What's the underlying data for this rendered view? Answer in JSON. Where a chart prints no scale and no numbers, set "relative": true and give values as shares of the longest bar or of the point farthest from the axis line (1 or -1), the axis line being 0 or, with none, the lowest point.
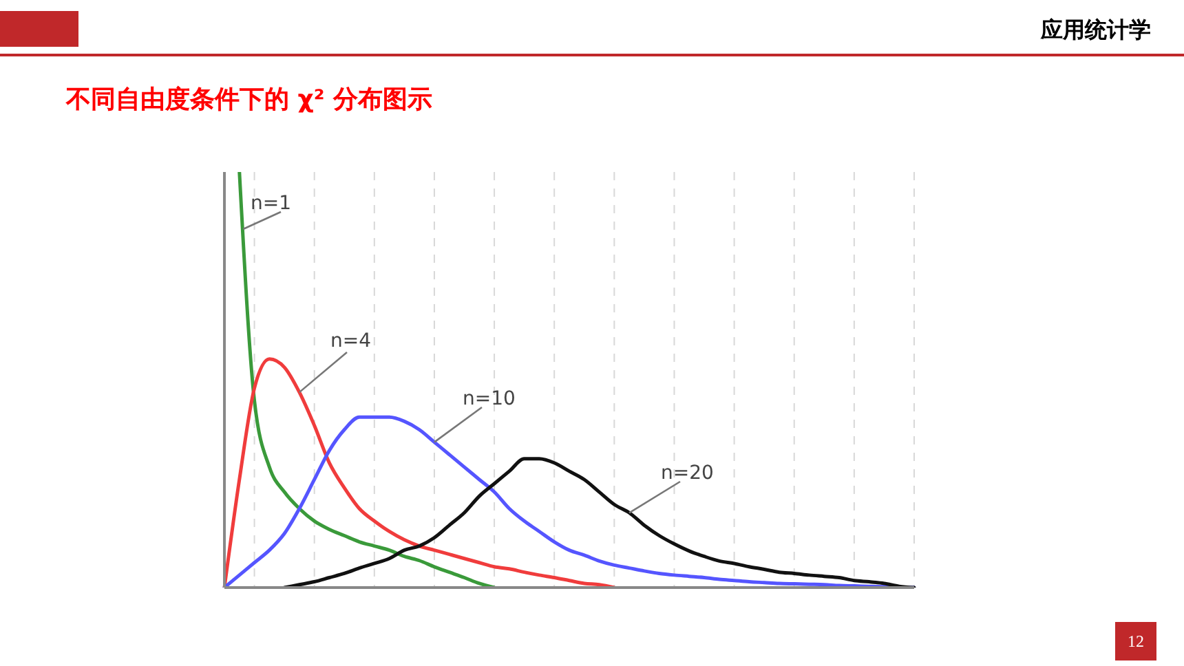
{
  "chart_data": {
    "type": "line",
    "title": "不同自由度条件下的 χ² 分布图示",
    "annotations": [
      "应用统计学",
      "12"
    ],
    "relative": true,
    "grid": "x",
    "categories": [
      null,
      null,
      null,
      null,
      null,
      null,
      null,
      null,
      null,
      null,
      null,
      null,
      null,
      null,
      null,
      null,
      null,
      null,
      null,
      null,
      null,
      null,
      null,
      null,
      null,
      null,
      null,
      null,
      null,
      null,
      null,
      null,
      null,
      null,
      null,
      null,
      null,
      null,
      null,
      null,
      null,
      null,
      null,
      null,
      null,
      null,
      null
    ],
    "series": [
      {
        "name": "n=1",
        "color": "#3a9a3a",
        "values": [
          null,
          1,
          0.45,
          0.29,
          0.23,
          0.19,
          0.16,
          0.14,
          0.125,
          0.11,
          0.1,
          0.09,
          0.075,
          0.065,
          0.05,
          0.037,
          0.024,
          0.01,
          0,
          null,
          null,
          null,
          null,
          null,
          null,
          null,
          null,
          null,
          null,
          null,
          null,
          null,
          null,
          null,
          null,
          null,
          null,
          null,
          null,
          null,
          null,
          null,
          null,
          null,
          null,
          null,
          null
        ]
      },
      {
        "name": "n=4",
        "color": "#f03c3c",
        "values": [
          0,
          0.26,
          0.48,
          0.55,
          0.53,
          0.47,
          0.39,
          0.3,
          0.24,
          0.19,
          0.16,
          0.135,
          0.115,
          0.1,
          0.09,
          0.08,
          0.07,
          0.06,
          0.05,
          0.045,
          0.037,
          0.03,
          0.024,
          0.017,
          0.01,
          0.007,
          0,
          null,
          null,
          null,
          null,
          null,
          null,
          null,
          null,
          null,
          null,
          null,
          null,
          null,
          null,
          null,
          null,
          null,
          null,
          null,
          null
        ]
      },
      {
        "name": "n=10",
        "color": "#5555ff",
        "values": [
          0,
          0.03,
          0.06,
          0.09,
          0.13,
          0.19,
          0.26,
          0.33,
          0.38,
          0.41,
          0.41,
          0.41,
          0.4,
          0.38,
          0.35,
          0.32,
          0.29,
          0.26,
          0.23,
          0.19,
          0.16,
          0.135,
          0.11,
          0.09,
          0.078,
          0.064,
          0.054,
          0.047,
          0.04,
          0.034,
          0.03,
          0.027,
          0.024,
          0.02,
          0.017,
          0.014,
          0.012,
          0.01,
          0.009,
          0.008,
          0.007,
          0.005,
          0.004,
          0.003,
          0.002,
          0.001,
          0
        ]
      },
      {
        "name": "n=20",
        "color": "#111111",
        "values": [
          null,
          null,
          null,
          null,
          0,
          0.007,
          0.014,
          0.024,
          0.034,
          0.047,
          0.058,
          0.07,
          0.09,
          0.1,
          0.12,
          0.15,
          0.18,
          0.22,
          0.25,
          0.28,
          0.31,
          0.31,
          0.3,
          0.28,
          0.26,
          0.23,
          0.2,
          0.18,
          0.15,
          0.125,
          0.105,
          0.088,
          0.075,
          0.064,
          0.058,
          0.05,
          0.044,
          0.037,
          0.034,
          0.03,
          0.027,
          0.024,
          0.017,
          0.014,
          0.01,
          0.003,
          0
        ]
      }
    ]
  }
}
